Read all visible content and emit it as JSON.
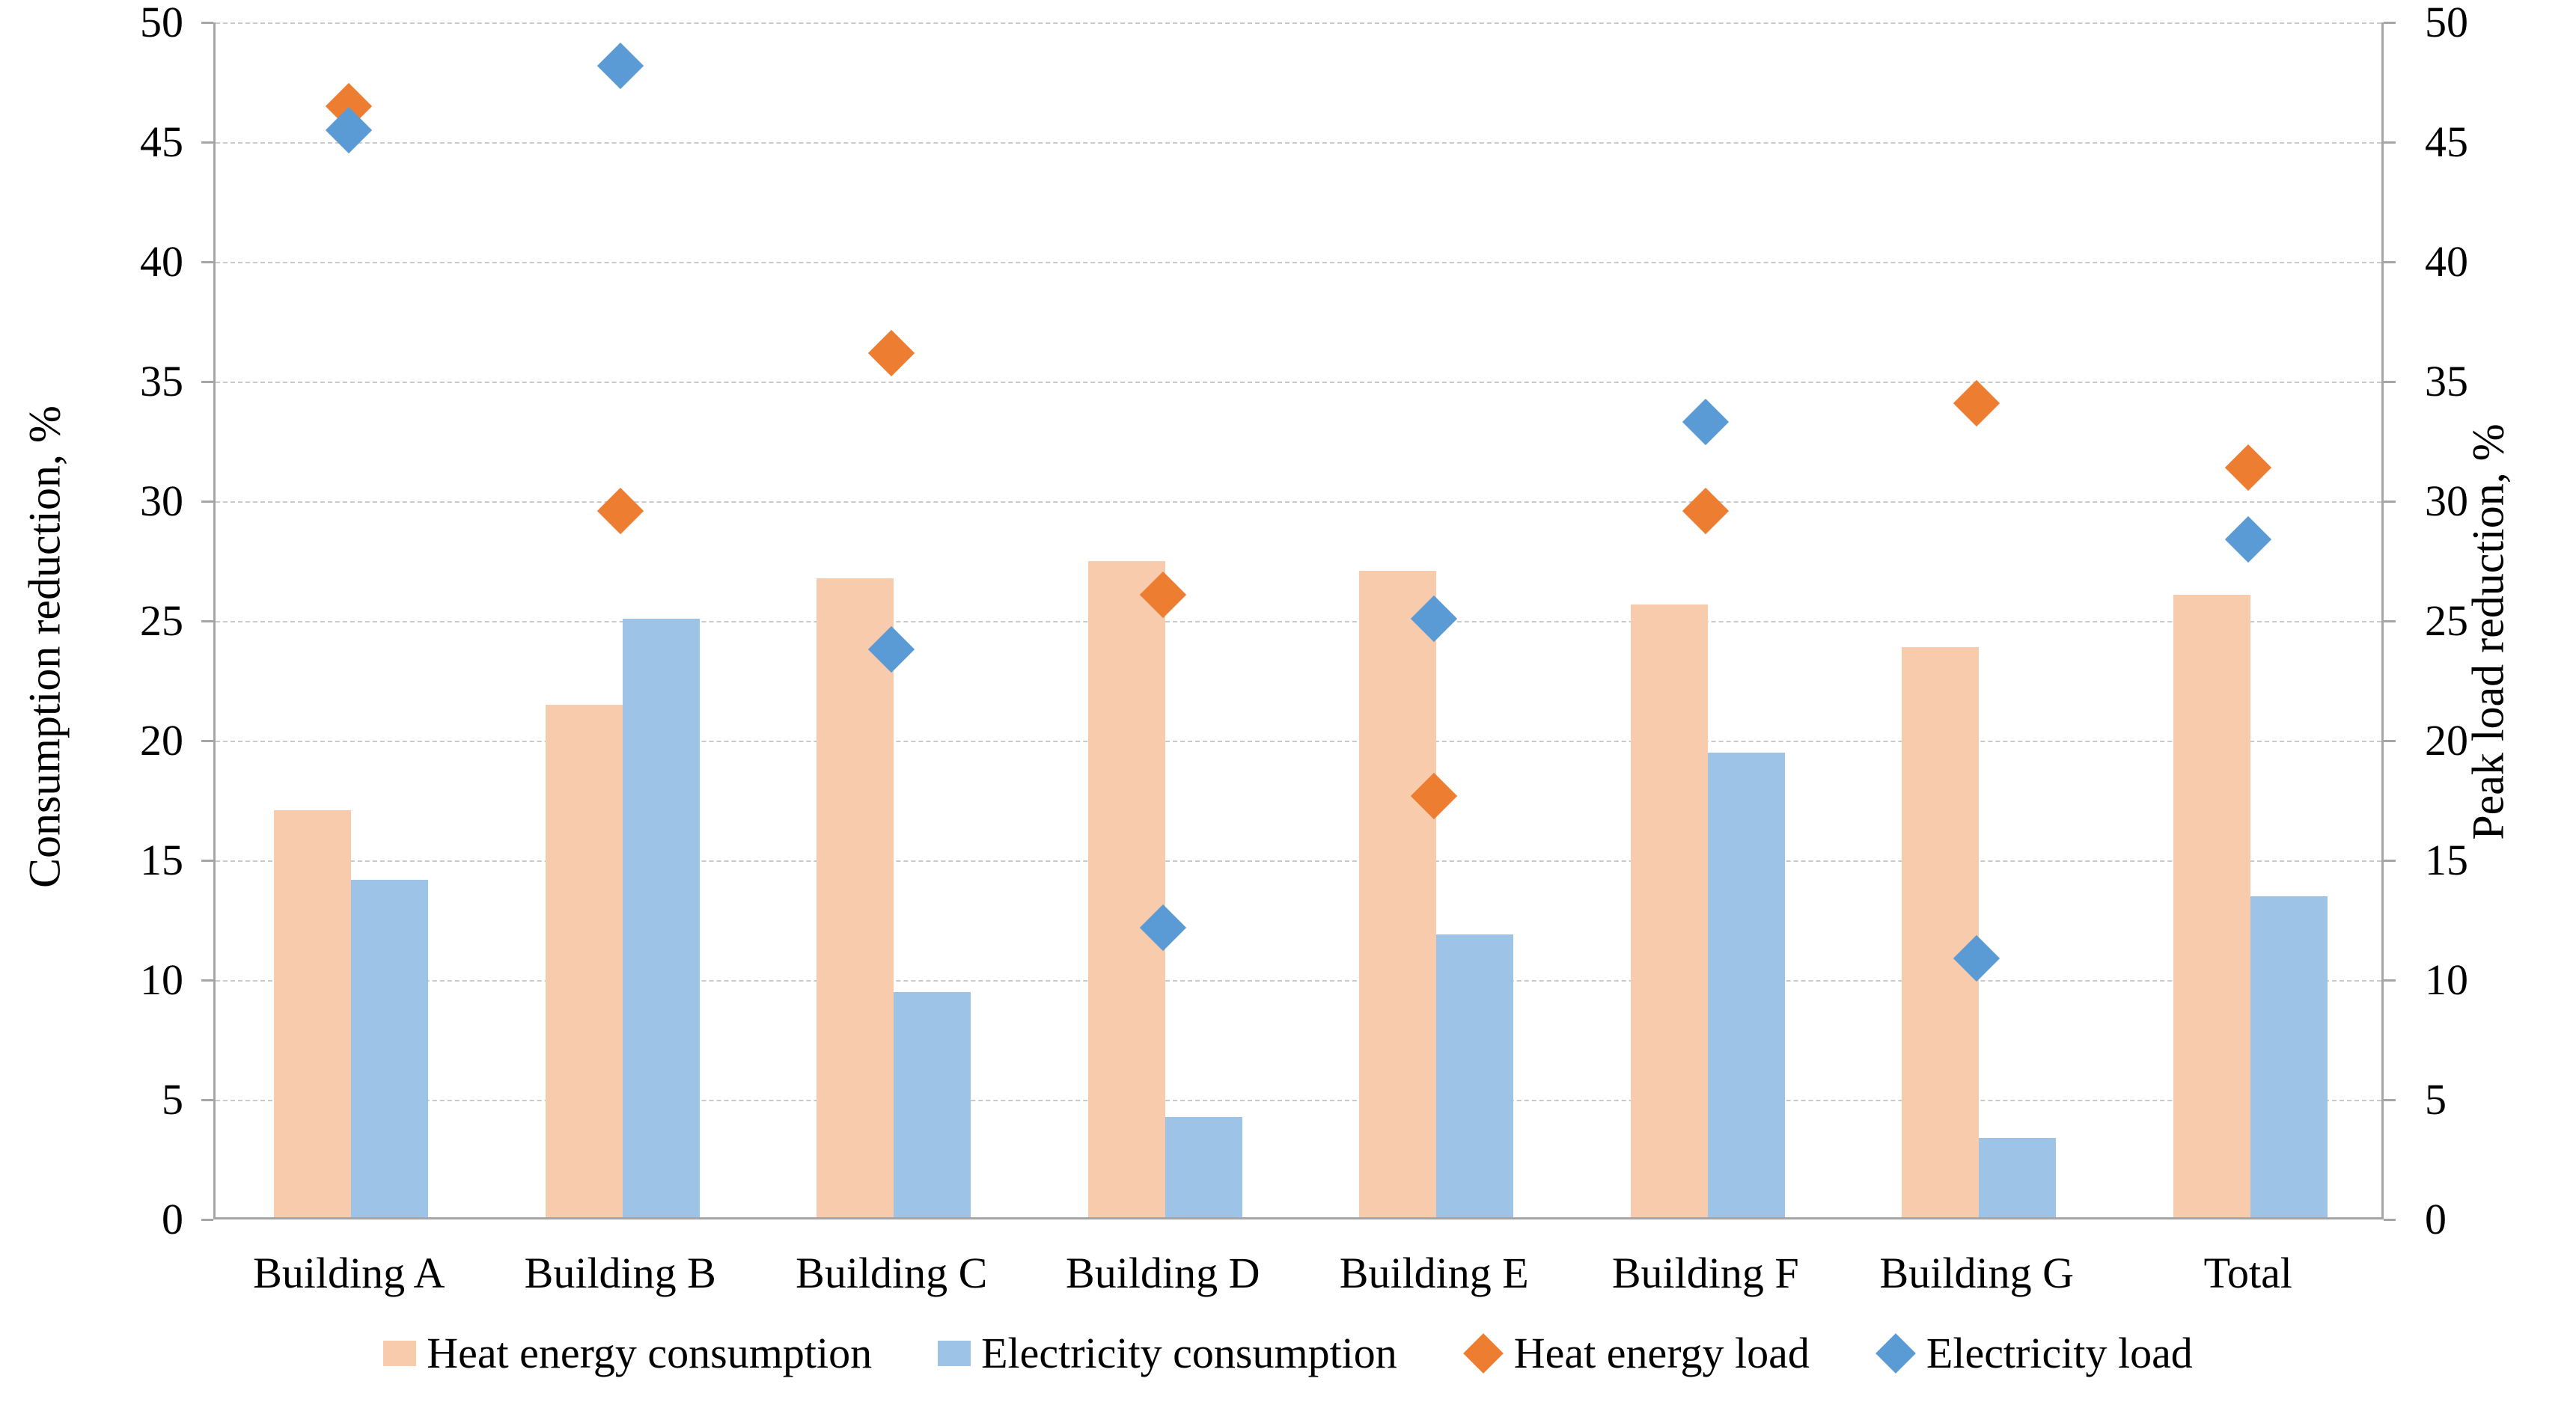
{
  "chart_data": {
    "type": "bar+scatter",
    "title": "",
    "categories": [
      "Building A",
      "Building B",
      "Building C",
      "Building D",
      "Building E",
      "Building F",
      "Building G",
      "Total"
    ],
    "series": [
      {
        "name": "Heat energy consumption",
        "type": "bar",
        "axis": "left",
        "color": "#F8CBAD",
        "values": [
          17.0,
          21.4,
          26.7,
          27.4,
          27.0,
          25.6,
          23.8,
          26.0
        ]
      },
      {
        "name": "Electricity consumption",
        "type": "bar",
        "axis": "left",
        "color": "#9DC3E6",
        "values": [
          14.1,
          25.0,
          9.4,
          4.2,
          11.8,
          19.4,
          3.3,
          13.4
        ]
      },
      {
        "name": "Heat energy load",
        "type": "scatter",
        "marker": "diamond",
        "axis": "right",
        "color": "#ED7D31",
        "values": [
          46.5,
          29.6,
          36.2,
          26.1,
          17.7,
          29.6,
          34.1,
          31.4
        ]
      },
      {
        "name": "Electricity load",
        "type": "scatter",
        "marker": "diamond",
        "axis": "right",
        "color": "#5B9BD5",
        "values": [
          45.5,
          48.2,
          23.8,
          12.2,
          25.1,
          33.3,
          10.9,
          28.4
        ]
      }
    ],
    "xlabel": "",
    "ylabel_left": "Consumption reduction, %",
    "ylabel_right": "Peak load reduction, %",
    "ylim": [
      0,
      50
    ],
    "yticks": [
      0,
      5,
      10,
      15,
      20,
      25,
      30,
      35,
      40,
      45,
      50
    ],
    "grid": "horizontal-dashed",
    "legend_position": "bottom",
    "colors": {
      "heat_bar": "#F8CBAD",
      "electricity_bar": "#9DC3E6",
      "heat_marker": "#ED7D31",
      "electricity_marker": "#5B9BD5",
      "gridline": "#C9C9C9",
      "axis_line": "#A6A6A6"
    }
  }
}
